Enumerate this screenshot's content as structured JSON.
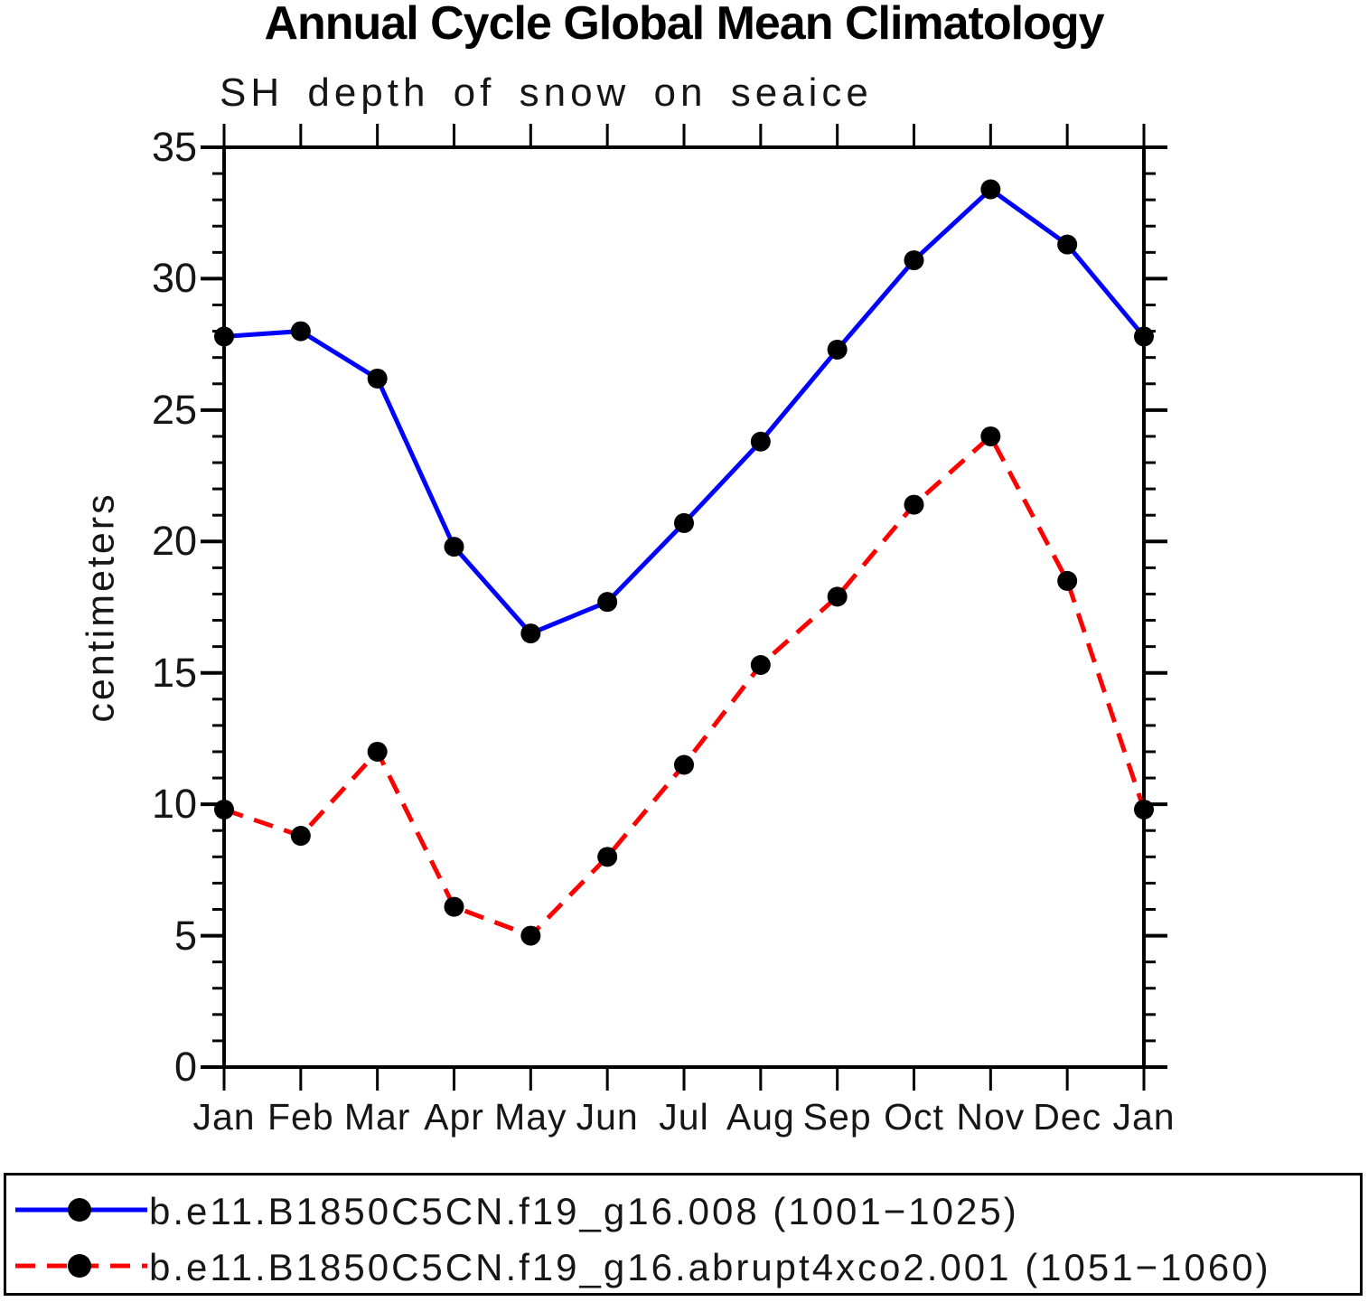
{
  "chart_data": {
    "type": "line",
    "title": "Annual Cycle Global Mean Climatology",
    "subtitle": "SH depth of snow on seaice",
    "xlabel": "",
    "ylabel": "centimeters",
    "categories": [
      "Jan",
      "Feb",
      "Mar",
      "Apr",
      "May",
      "Jun",
      "Jul",
      "Aug",
      "Sep",
      "Oct",
      "Nov",
      "Dec",
      "Jan"
    ],
    "ylim": [
      0,
      35
    ],
    "ytick_major": [
      0,
      5,
      10,
      15,
      20,
      25,
      30,
      35
    ],
    "ytick_minor_step": 1,
    "grid": false,
    "legend_position": "bottom-box",
    "axis_color": "#000000",
    "marker": "filled-circle",
    "marker_color": "#000000",
    "series": [
      {
        "name": "b.e11.B1850C5CN.f19_g16.008 (1001−1025)",
        "color": "#0000ff",
        "style": "solid",
        "values": [
          27.8,
          28.0,
          26.2,
          19.8,
          16.5,
          17.7,
          20.7,
          23.8,
          27.3,
          30.7,
          33.4,
          31.3,
          27.8
        ]
      },
      {
        "name": "b.e11.B1850C5CN.f19_g16.abrupt4xco2.001 (1051−1060)",
        "color": "#ff0000",
        "style": "dashed",
        "values": [
          9.8,
          8.8,
          12.0,
          6.1,
          5.0,
          8.0,
          11.5,
          15.3,
          17.9,
          21.4,
          24.0,
          18.5,
          9.8
        ]
      }
    ]
  }
}
